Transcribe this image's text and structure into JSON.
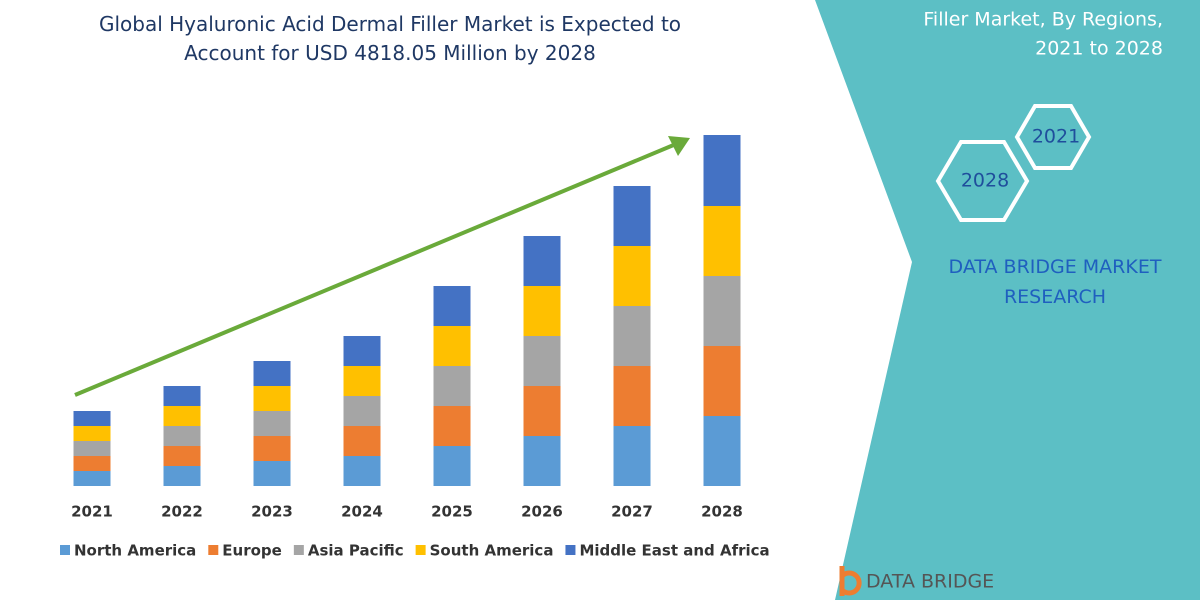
{
  "chart_data": {
    "type": "bar",
    "stacked": true,
    "title": "Global Hyaluronic Acid Dermal Filler Market is Expected to Account for USD 4818.05 Million by 2028",
    "categories": [
      "2021",
      "2022",
      "2023",
      "2024",
      "2025",
      "2026",
      "2027",
      "2028"
    ],
    "series": [
      {
        "name": "North America",
        "color": "#5b9bd5",
        "values": [
          15,
          20,
          25,
          30,
          40,
          50,
          60,
          70
        ]
      },
      {
        "name": "Europe",
        "color": "#ed7d31",
        "values": [
          15,
          20,
          25,
          30,
          40,
          50,
          60,
          70
        ]
      },
      {
        "name": "Asia Pacific",
        "color": "#a5a5a5",
        "values": [
          15,
          20,
          25,
          30,
          40,
          50,
          60,
          70
        ]
      },
      {
        "name": "South America",
        "color": "#ffc000",
        "values": [
          15,
          20,
          25,
          30,
          40,
          50,
          60,
          70
        ]
      },
      {
        "name": "Middle East and Africa",
        "color": "#4472c4",
        "values": [
          15,
          20,
          25,
          30,
          40,
          50,
          60,
          71
        ]
      }
    ]
  },
  "panel": {
    "heading": [
      "Filler Market, By Regions,",
      "2021 to 2028"
    ],
    "hexagons": [
      "2021",
      "2028"
    ],
    "brand": "DATA BRIDGE MARKET RESEARCH",
    "logo": "DATA BRIDGE"
  }
}
